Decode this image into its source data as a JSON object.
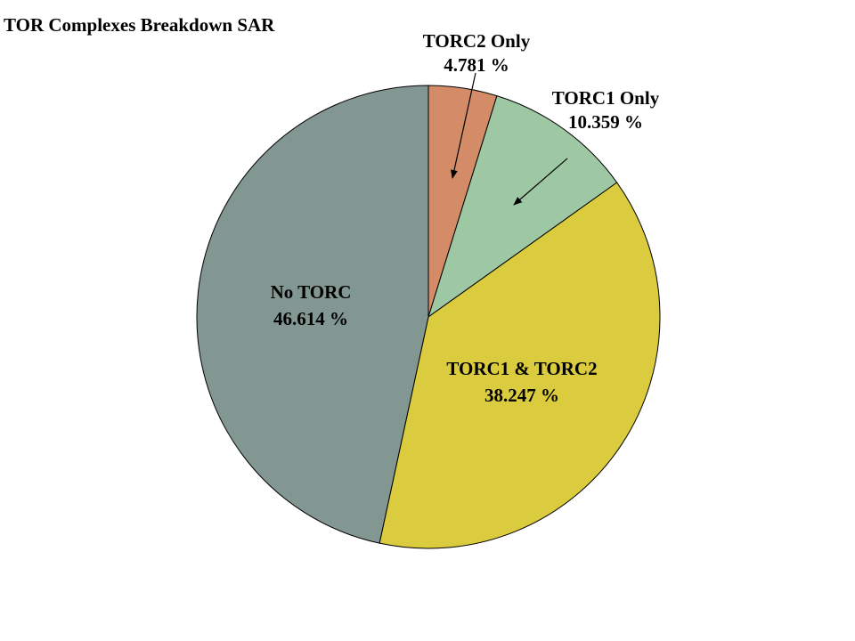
{
  "chart_data": {
    "type": "pie",
    "title": "TOR Complexes Breakdown SAR",
    "slices": [
      {
        "label": "TORC2 Only",
        "value": 4.781,
        "value_text": "4.781 %",
        "color": "#d38c67"
      },
      {
        "label": "TORC1 Only",
        "value": 10.359,
        "value_text": "10.359 %",
        "color": "#9ec8a3"
      },
      {
        "label": "TORC1 & TORC2",
        "value": 38.247,
        "value_text": "38.247 %",
        "color": "#dacc3e"
      },
      {
        "label": "No TORC",
        "value": 46.614,
        "value_text": "46.614 %",
        "color": "#829692"
      }
    ],
    "start_angle": "12 o'clock",
    "direction": "clockwise",
    "outline_color": "#000000"
  }
}
